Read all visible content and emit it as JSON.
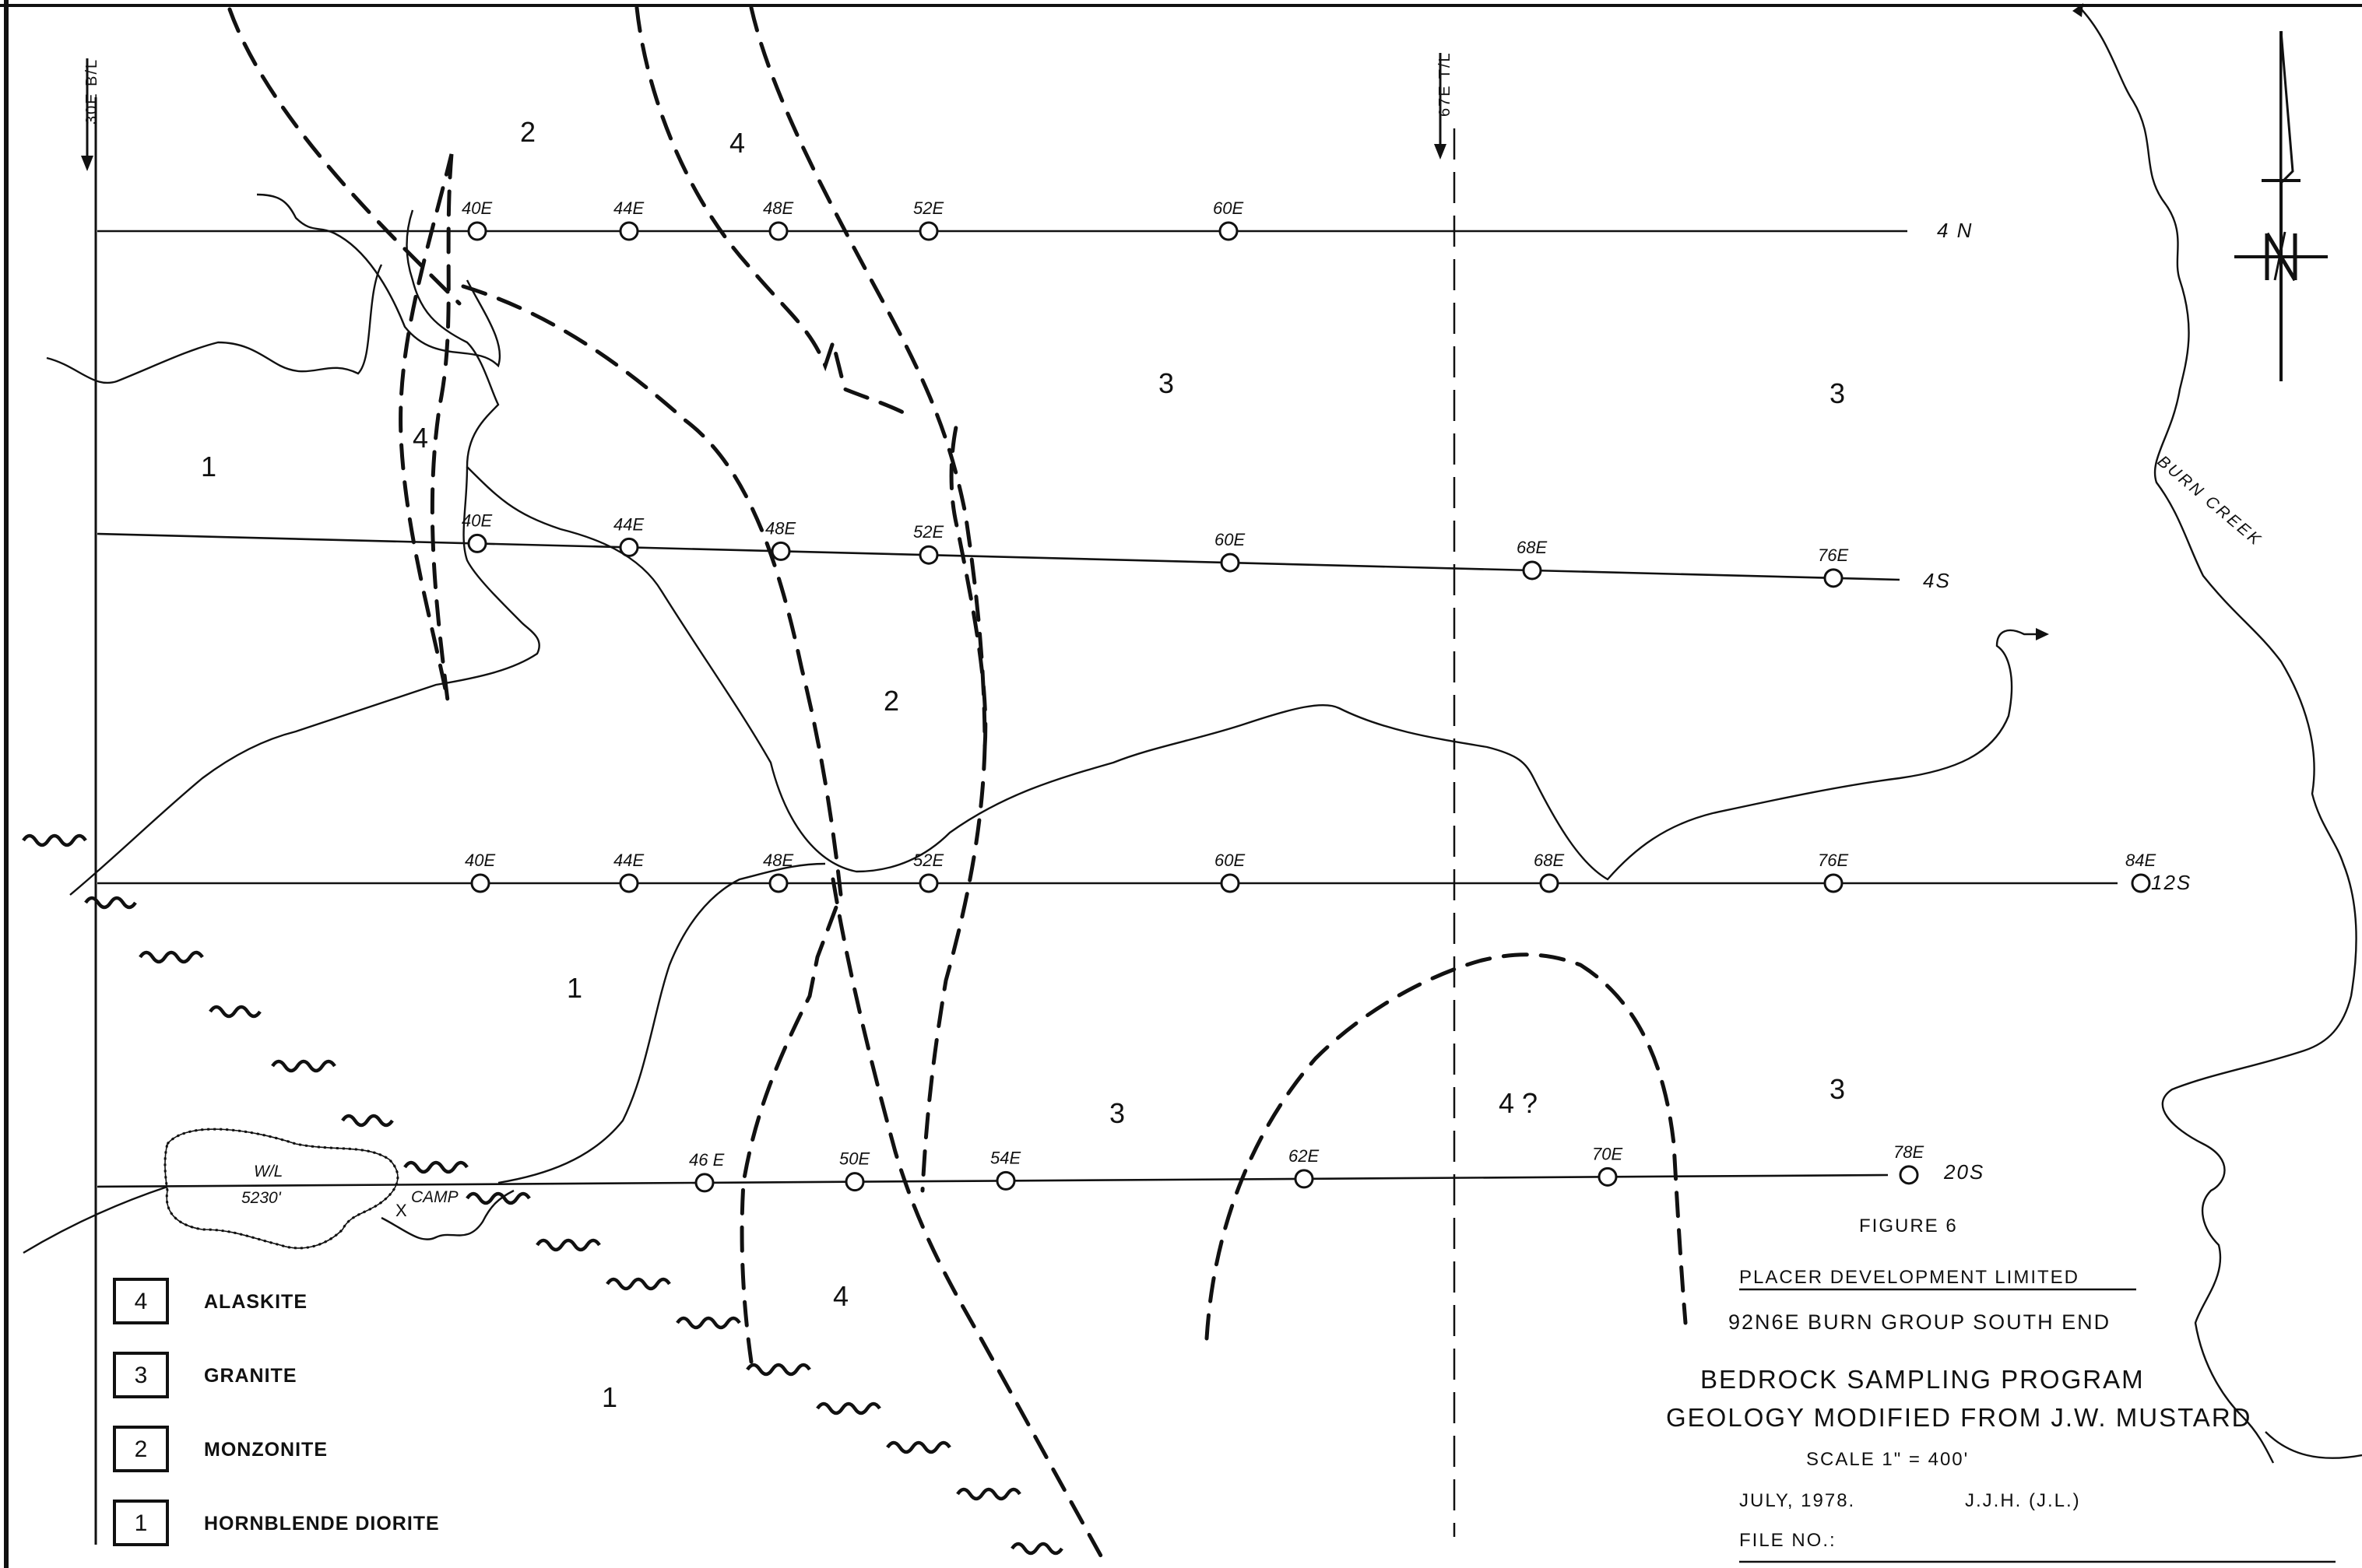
{
  "baselines": {
    "b30": "30E B/L",
    "t67": "67E T/L"
  },
  "survey_lines": [
    {
      "label": "4 N",
      "stations": [
        "40E",
        "44E",
        "48E",
        "52E",
        "60E"
      ]
    },
    {
      "label": "4S",
      "stations": [
        "40E",
        "44E",
        "48E",
        "52E",
        "60E",
        "68E",
        "76E"
      ]
    },
    {
      "label": "12S",
      "stations": [
        "40E",
        "44E",
        "48E",
        "52E",
        "60E",
        "68E",
        "76E",
        "84E"
      ]
    },
    {
      "label": "20S",
      "stations": [
        "46 E",
        "50E",
        "54E",
        "62E",
        "70E",
        "78E"
      ]
    }
  ],
  "unit_labels": [
    "1",
    "1",
    "1",
    "2",
    "2",
    "3",
    "3",
    "3",
    "3",
    "4",
    "4",
    "4",
    "4 ?"
  ],
  "features": {
    "creek": "BURN CREEK",
    "lake_wl": "W/L",
    "lake_elev": "5230'",
    "camp_x": "X",
    "camp": "CAMP"
  },
  "legend": [
    {
      "code": "4",
      "name": "ALASKITE"
    },
    {
      "code": "3",
      "name": "GRANITE"
    },
    {
      "code": "2",
      "name": "MONZONITE"
    },
    {
      "code": "1",
      "name": "HORNBLENDE DIORITE"
    }
  ],
  "title_block": {
    "figure": "FIGURE  6",
    "company": "PLACER  DEVELOPMENT LIMITED",
    "claim": "92N6E   BURN GROUP SOUTH END",
    "title1": "BEDROCK  SAMPLING  PROGRAM",
    "title2": "GEOLOGY  MODIFIED  FROM  J.W. MUSTARD",
    "scale": "SCALE  1\" = 400'",
    "date": "JULY, 1978.",
    "authors": "J.J.H.  (J.L.)",
    "file": "FILE  NO.:"
  },
  "colors": {
    "ink": "#111111",
    "paper": "#ffffff"
  }
}
